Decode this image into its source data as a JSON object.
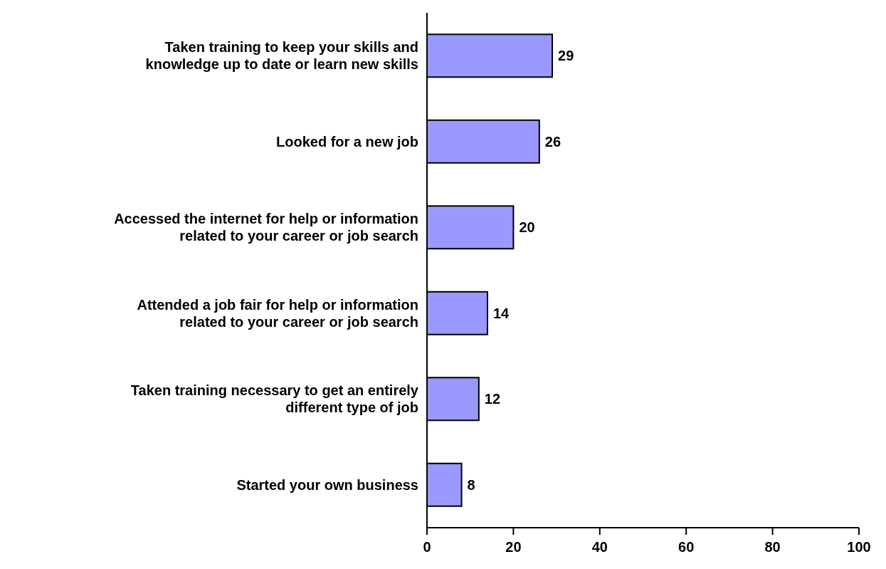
{
  "chart_data": {
    "type": "bar",
    "orientation": "horizontal",
    "categories": [
      "Taken training to keep your skills and knowledge up to date or learn new skills",
      "Looked for a new job",
      "Accessed the internet for help or information related to your career or job search",
      "Attended a job fair for help or information related to your career or job search",
      "Taken training necessary to get an entirely different type of job",
      "Started your own business"
    ],
    "values": [
      29,
      26,
      20,
      14,
      12,
      8
    ],
    "color": "#9999ff",
    "xlim": [
      0,
      100
    ],
    "xticks": [
      0,
      20,
      40,
      60,
      80,
      100
    ],
    "data_labels": true,
    "grid": false,
    "legend": false
  }
}
